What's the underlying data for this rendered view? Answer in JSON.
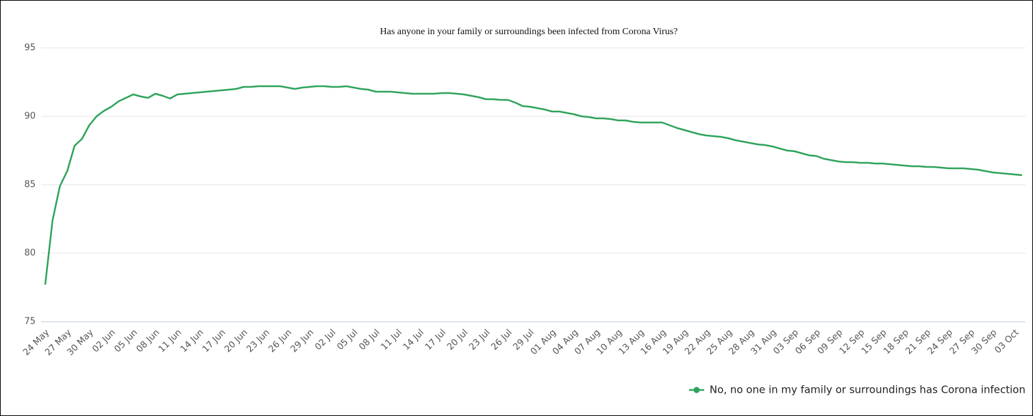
{
  "chart_data": {
    "type": "line",
    "title": "Has anyone in your family or surroundings been infected from Corona Virus?",
    "categories": [
      "24 May",
      null,
      null,
      "27 May",
      null,
      null,
      "30 May",
      null,
      null,
      "02 Jun",
      null,
      null,
      "05 Jun",
      null,
      null,
      "08 Jun",
      null,
      null,
      "11 Jun",
      null,
      null,
      "14 Jun",
      null,
      null,
      "17 Jun",
      null,
      null,
      "20 Jun",
      null,
      null,
      "23 Jun",
      null,
      null,
      "26 Jun",
      null,
      null,
      "29 Jun",
      null,
      null,
      "02 Jul",
      null,
      null,
      "05 Jul",
      null,
      null,
      "08 Jul",
      null,
      null,
      "11 Jul",
      null,
      null,
      "14 Jul",
      null,
      null,
      "17 Jul",
      null,
      null,
      "20 Jul",
      null,
      null,
      "23 Jul",
      null,
      null,
      "26 Jul",
      null,
      null,
      "29 Jul",
      null,
      null,
      "01 Aug",
      null,
      null,
      "04 Aug",
      null,
      null,
      "07 Aug",
      null,
      null,
      "10 Aug",
      null,
      null,
      "13 Aug",
      null,
      null,
      "16 Aug",
      null,
      null,
      "19 Aug",
      null,
      null,
      "22 Aug",
      null,
      null,
      "25 Aug",
      null,
      null,
      "28 Aug",
      null,
      null,
      "31 Aug",
      null,
      null,
      "03 Sep",
      null,
      null,
      "06 Sep",
      null,
      null,
      "09 Sep",
      null,
      null,
      "12 Sep",
      null,
      null,
      "15 Sep",
      null,
      null,
      "18 Sep",
      null,
      null,
      "21 Sep",
      null,
      null,
      "24 Sep",
      null,
      null,
      "27 Sep",
      null,
      null,
      "30 Sep",
      null,
      null,
      "03 Oct",
      null
    ],
    "series": [
      {
        "name": "No, no one in my family or surroundings has Corona infection",
        "color": "#2ea35b",
        "values": [
          77.7,
          82.4,
          84.9,
          86.0,
          87.85,
          88.35,
          89.35,
          90.0,
          90.4,
          90.7,
          91.1,
          91.35,
          91.6,
          91.45,
          91.35,
          91.65,
          91.5,
          91.3,
          91.6,
          91.65,
          91.7,
          91.75,
          91.8,
          91.85,
          91.9,
          91.95,
          92.0,
          92.15,
          92.15,
          92.2,
          92.2,
          92.2,
          92.2,
          92.1,
          92.0,
          92.1,
          92.15,
          92.2,
          92.2,
          92.15,
          92.15,
          92.2,
          92.1,
          92.0,
          91.95,
          91.8,
          91.8,
          91.8,
          91.75,
          91.7,
          91.65,
          91.65,
          91.65,
          91.65,
          91.7,
          91.7,
          91.65,
          91.6,
          91.5,
          91.4,
          91.25,
          91.25,
          91.2,
          91.2,
          91.0,
          90.75,
          90.7,
          90.6,
          90.5,
          90.35,
          90.35,
          90.25,
          90.15,
          90.0,
          89.95,
          89.85,
          89.85,
          89.8,
          89.7,
          89.7,
          89.6,
          89.55,
          89.55,
          89.55,
          89.55,
          89.35,
          89.15,
          89.0,
          88.85,
          88.7,
          88.6,
          88.55,
          88.5,
          88.4,
          88.25,
          88.15,
          88.05,
          87.95,
          87.9,
          87.8,
          87.65,
          87.5,
          87.45,
          87.3,
          87.15,
          87.1,
          86.9,
          86.8,
          86.7,
          86.65,
          86.65,
          86.6,
          86.6,
          86.55,
          86.55,
          86.5,
          86.45,
          86.4,
          86.35,
          86.35,
          86.3,
          86.3,
          86.25,
          86.2,
          86.2,
          86.2,
          86.15,
          86.1,
          86.0,
          85.9,
          85.85,
          85.8,
          85.75,
          85.7
        ]
      }
    ],
    "ylim": [
      75,
      95
    ],
    "yticks": [
      75,
      80,
      85,
      90,
      95
    ],
    "grid": true,
    "legend": "bottom-right"
  }
}
